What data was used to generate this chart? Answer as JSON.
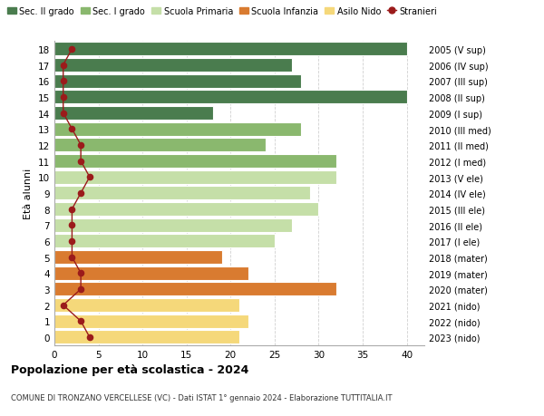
{
  "ages": [
    18,
    17,
    16,
    15,
    14,
    13,
    12,
    11,
    10,
    9,
    8,
    7,
    6,
    5,
    4,
    3,
    2,
    1,
    0
  ],
  "years": [
    "2005 (V sup)",
    "2006 (IV sup)",
    "2007 (III sup)",
    "2008 (II sup)",
    "2009 (I sup)",
    "2010 (III med)",
    "2011 (II med)",
    "2012 (I med)",
    "2013 (V ele)",
    "2014 (IV ele)",
    "2015 (III ele)",
    "2016 (II ele)",
    "2017 (I ele)",
    "2018 (mater)",
    "2019 (mater)",
    "2020 (mater)",
    "2021 (nido)",
    "2022 (nido)",
    "2023 (nido)"
  ],
  "values": [
    40,
    27,
    28,
    40,
    18,
    28,
    24,
    32,
    32,
    29,
    30,
    27,
    25,
    19,
    22,
    32,
    21,
    22,
    21
  ],
  "stranieri": [
    2,
    1,
    1,
    1,
    1,
    2,
    3,
    3,
    4,
    3,
    2,
    2,
    2,
    2,
    3,
    3,
    1,
    3,
    4
  ],
  "colors": {
    "sec_II": "#4a7c4e",
    "sec_I": "#8ab86e",
    "primaria": "#c5dfa8",
    "infanzia": "#d97b30",
    "nido": "#f5d87a",
    "stranieri": "#9b1b1b"
  },
  "title": "Popolazione per eta scolastica - 2024",
  "subtitle": "COMUNE DI TRONZANO VERCELLESE (VC) - Dati ISTAT 1° gennaio 2024 - Elaborazione TUTTITALIA.IT",
  "xlim": [
    0,
    42
  ],
  "background_color": "#ffffff",
  "grid_color": "#d0d0d0"
}
